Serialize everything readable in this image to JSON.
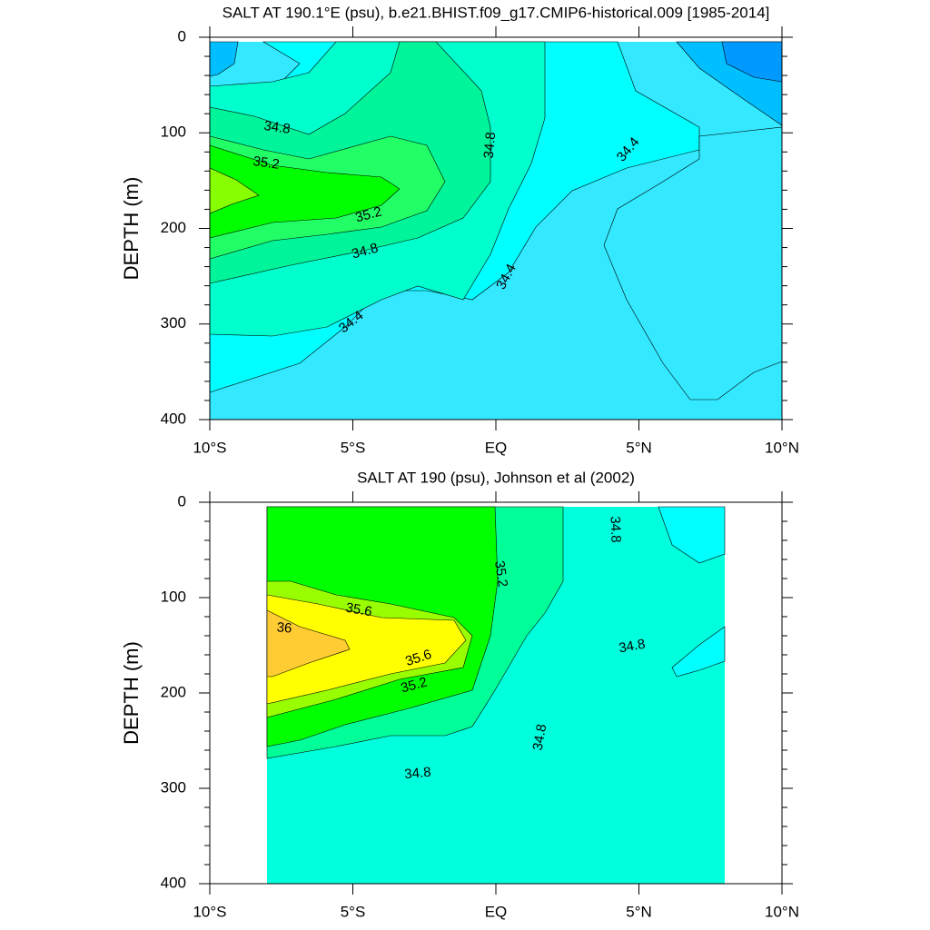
{
  "chart_data": [
    {
      "type": "contour",
      "title": "SALT AT 190.1°E (psu), b.e21.BHIST.f09_g17.CMIP6-historical.009 [1985-2014]",
      "y_label": "DEPTH (m)",
      "xlim": [
        -10,
        10
      ],
      "ylim": [
        400,
        0
      ],
      "xticks": [
        {
          "value": -10,
          "label": "10°S"
        },
        {
          "value": -5,
          "label": "5°S"
        },
        {
          "value": 0,
          "label": "EQ"
        },
        {
          "value": 5,
          "label": "5°N"
        },
        {
          "value": 10,
          "label": "10°N"
        }
      ],
      "yticks": [
        0,
        100,
        200,
        300,
        400
      ],
      "contour_labels": [
        34.8,
        35.2,
        35.2,
        34.8,
        34.4,
        34.8,
        34.4,
        34.4
      ]
    },
    {
      "type": "contour",
      "title": "SALT AT 190 (psu), Johnson et al (2002)",
      "y_label": "DEPTH (m)",
      "xlim": [
        -10,
        10
      ],
      "ylim": [
        400,
        0
      ],
      "xticks": [
        {
          "value": -10,
          "label": "10°S"
        },
        {
          "value": -5,
          "label": "5°S"
        },
        {
          "value": 0,
          "label": "EQ"
        },
        {
          "value": 5,
          "label": "5°N"
        },
        {
          "value": 10,
          "label": "10°N"
        }
      ],
      "yticks": [
        0,
        100,
        200,
        300,
        400
      ],
      "contour_labels": [
        35.6,
        36,
        35.6,
        35.2,
        35.2,
        34.8,
        34.8,
        34.8,
        34.8
      ]
    }
  ]
}
